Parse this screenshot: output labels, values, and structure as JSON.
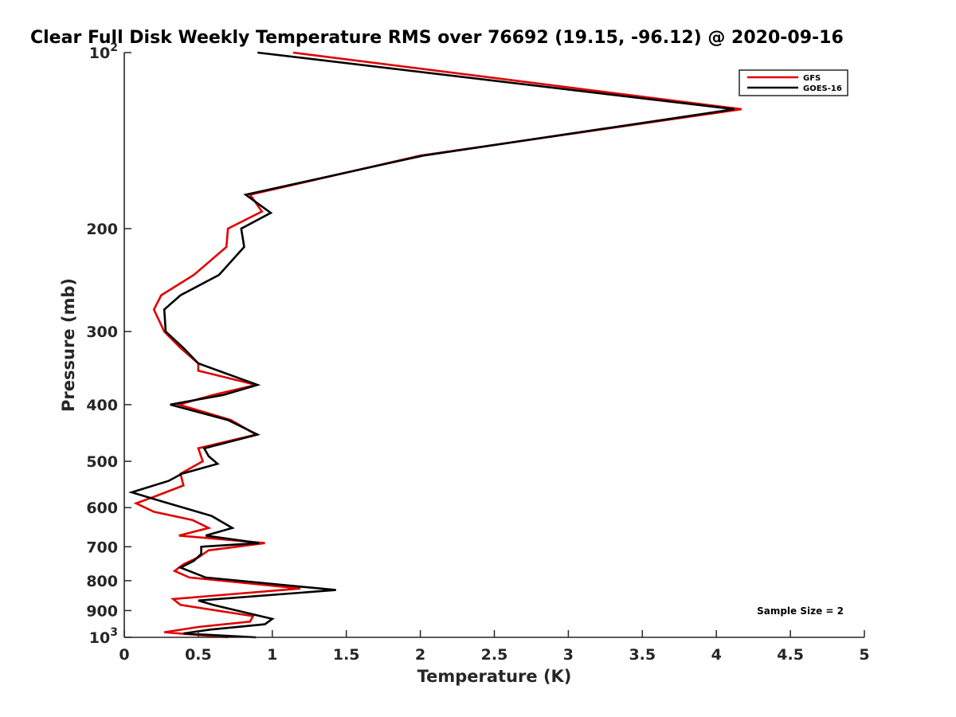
{
  "chart_data": {
    "type": "line",
    "title": "Clear Full Disk Weekly Temperature RMS over 76692 (19.15, -96.12) @ 2020-09-16",
    "xlabel": "Temperature (K)",
    "ylabel": "Pressure (mb)",
    "xlim": [
      0,
      5
    ],
    "ylim": [
      100,
      1000
    ],
    "y_scale": "log",
    "y_reversed": true,
    "x_ticks": [
      "0",
      "0.5",
      "1",
      "1.5",
      "2",
      "2.5",
      "3",
      "3.5",
      "4",
      "4.5",
      "5"
    ],
    "y_ticks": [
      {
        "value": 100,
        "base": "10",
        "exp": "2"
      },
      {
        "value": 200,
        "label": "200"
      },
      {
        "value": 300,
        "label": "300"
      },
      {
        "value": 400,
        "label": "400"
      },
      {
        "value": 500,
        "label": "500"
      },
      {
        "value": 600,
        "label": "600"
      },
      {
        "value": 700,
        "label": "700"
      },
      {
        "value": 800,
        "label": "800"
      },
      {
        "value": 900,
        "label": "900"
      },
      {
        "value": 1000,
        "base": "10",
        "exp": "3"
      }
    ],
    "legend_position": "top-right",
    "annotation": "Sample Size = 2",
    "series": [
      {
        "name": "GFS",
        "color": "#e00000",
        "points": [
          [
            1.14,
            100
          ],
          [
            4.17,
            125
          ],
          [
            2.0,
            150
          ],
          [
            0.85,
            175
          ],
          [
            0.93,
            187
          ],
          [
            0.7,
            200
          ],
          [
            0.69,
            215
          ],
          [
            0.47,
            240
          ],
          [
            0.25,
            260
          ],
          [
            0.2,
            275
          ],
          [
            0.27,
            300
          ],
          [
            0.38,
            320
          ],
          [
            0.5,
            340
          ],
          [
            0.5,
            350
          ],
          [
            0.89,
            370
          ],
          [
            0.6,
            385
          ],
          [
            0.37,
            400
          ],
          [
            0.72,
            425
          ],
          [
            0.89,
            450
          ],
          [
            0.5,
            475
          ],
          [
            0.53,
            500
          ],
          [
            0.38,
            525
          ],
          [
            0.4,
            550
          ],
          [
            0.2,
            575
          ],
          [
            0.08,
            590
          ],
          [
            0.2,
            610
          ],
          [
            0.46,
            630
          ],
          [
            0.57,
            650
          ],
          [
            0.37,
            670
          ],
          [
            0.95,
            690
          ],
          [
            0.57,
            710
          ],
          [
            0.5,
            730
          ],
          [
            0.4,
            750
          ],
          [
            0.34,
            770
          ],
          [
            0.44,
            790
          ],
          [
            1.19,
            825
          ],
          [
            0.33,
            860
          ],
          [
            0.38,
            880
          ],
          [
            0.87,
            920
          ],
          [
            0.85,
            940
          ],
          [
            0.5,
            960
          ],
          [
            0.27,
            980
          ],
          [
            0.7,
            1000
          ]
        ]
      },
      {
        "name": "GOES-16",
        "color": "#000000",
        "points": [
          [
            0.9,
            100
          ],
          [
            4.12,
            125
          ],
          [
            2.02,
            150
          ],
          [
            0.82,
            175
          ],
          [
            0.99,
            188
          ],
          [
            0.79,
            200
          ],
          [
            0.81,
            215
          ],
          [
            0.64,
            240
          ],
          [
            0.38,
            260
          ],
          [
            0.27,
            275
          ],
          [
            0.28,
            300
          ],
          [
            0.4,
            320
          ],
          [
            0.5,
            340
          ],
          [
            0.9,
            370
          ],
          [
            0.67,
            385
          ],
          [
            0.31,
            400
          ],
          [
            0.7,
            425
          ],
          [
            0.9,
            450
          ],
          [
            0.54,
            475
          ],
          [
            0.57,
            490
          ],
          [
            0.63,
            505
          ],
          [
            0.39,
            525
          ],
          [
            0.3,
            540
          ],
          [
            0.05,
            565
          ],
          [
            0.25,
            585
          ],
          [
            0.59,
            620
          ],
          [
            0.73,
            650
          ],
          [
            0.55,
            670
          ],
          [
            0.91,
            690
          ],
          [
            0.52,
            700
          ],
          [
            0.52,
            720
          ],
          [
            0.47,
            740
          ],
          [
            0.38,
            760
          ],
          [
            0.55,
            790
          ],
          [
            1.43,
            830
          ],
          [
            0.5,
            865
          ],
          [
            0.6,
            880
          ],
          [
            1.0,
            930
          ],
          [
            0.95,
            950
          ],
          [
            0.58,
            970
          ],
          [
            0.4,
            985
          ],
          [
            0.89,
            1000
          ]
        ]
      }
    ]
  }
}
